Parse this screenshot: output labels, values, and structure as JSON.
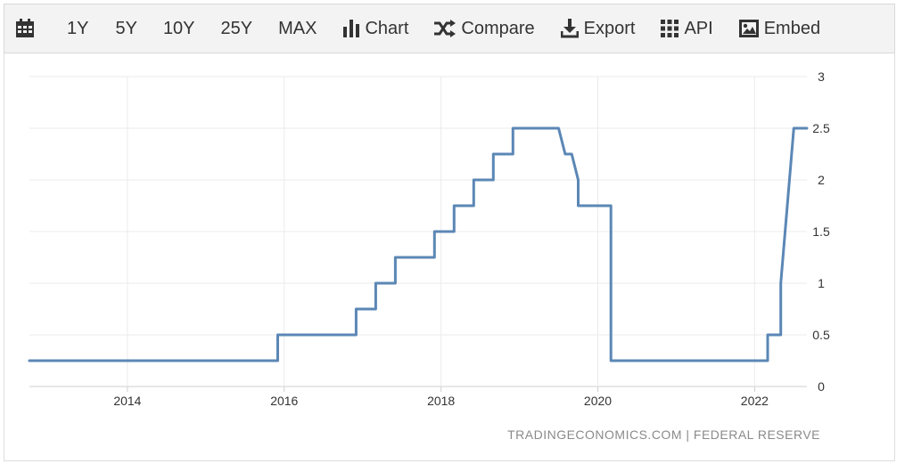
{
  "toolbar": {
    "items": [
      {
        "key": "calendar",
        "label": "",
        "icon": "calendar-icon"
      },
      {
        "key": "1y",
        "label": "1Y"
      },
      {
        "key": "5y",
        "label": "5Y"
      },
      {
        "key": "10y",
        "label": "10Y"
      },
      {
        "key": "25y",
        "label": "25Y"
      },
      {
        "key": "max",
        "label": "MAX"
      },
      {
        "key": "chart",
        "label": "Chart",
        "icon": "bar-chart-icon"
      },
      {
        "key": "compare",
        "label": "Compare",
        "icon": "shuffle-icon"
      },
      {
        "key": "export",
        "label": "Export",
        "icon": "download-icon"
      },
      {
        "key": "api",
        "label": "API",
        "icon": "grid-icon"
      },
      {
        "key": "embed",
        "label": "Embed",
        "icon": "image-icon"
      }
    ]
  },
  "footer": {
    "source": "TRADINGECONOMICS.COM | FEDERAL RESERVE"
  },
  "colors": {
    "line": "#5b87b5",
    "grid": "#ebebeb",
    "axis": "#cfcfcf",
    "tick_text": "#333333"
  },
  "chart_data": {
    "type": "line",
    "title": "",
    "xlabel": "",
    "ylabel": "",
    "x_tick_labels": [
      "2014",
      "2016",
      "2018",
      "2020",
      "2022"
    ],
    "y_tick_labels": [
      "0",
      "0.5",
      "1",
      "1.5",
      "2",
      "2.5",
      "3"
    ],
    "ylim": [
      0,
      3
    ],
    "xlim": [
      "2012-10",
      "2022-09"
    ],
    "y_axis_position": "right",
    "grid": true,
    "series": [
      {
        "x": [
          "2012-10",
          "2015-12",
          "2015-12",
          "2016-12",
          "2016-12",
          "2017-03",
          "2017-03",
          "2017-06",
          "2017-06",
          "2017-12",
          "2017-12",
          "2018-03",
          "2018-03",
          "2018-06",
          "2018-06",
          "2018-09",
          "2018-09",
          "2018-12",
          "2018-12",
          "2019-07",
          "2019-08",
          "2019-09",
          "2019-10",
          "2019-10",
          "2020-03",
          "2020-03",
          "2020-03",
          "2020-03",
          "2022-03",
          "2022-03",
          "2022-05",
          "2022-05",
          "2022-06",
          "2022-07",
          "2022-09"
        ],
        "values": [
          0.25,
          0.25,
          0.5,
          0.5,
          0.75,
          0.75,
          1.0,
          1.0,
          1.25,
          1.25,
          1.5,
          1.5,
          1.75,
          1.75,
          2.0,
          2.0,
          2.25,
          2.25,
          2.5,
          2.5,
          2.25,
          2.25,
          2.0,
          1.75,
          1.75,
          0.75,
          0.75,
          0.25,
          0.25,
          0.5,
          0.5,
          1.0,
          1.75,
          2.5,
          2.5
        ]
      }
    ]
  }
}
